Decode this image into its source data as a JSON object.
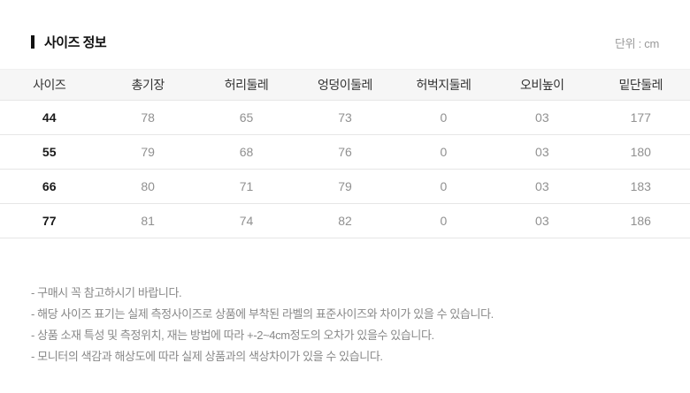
{
  "page": {
    "title": "사이즈 정보",
    "unit_label": "단위 : cm"
  },
  "table": {
    "headers": [
      "사이즈",
      "총기장",
      "허리둘레",
      "엉덩이둘레",
      "허벅지둘레",
      "오비높이",
      "밑단둘레"
    ],
    "rows": [
      [
        "44",
        "78",
        "65",
        "73",
        "0",
        "03",
        "177"
      ],
      [
        "55",
        "79",
        "68",
        "76",
        "0",
        "03",
        "180"
      ],
      [
        "66",
        "80",
        "71",
        "79",
        "0",
        "03",
        "183"
      ],
      [
        "77",
        "81",
        "74",
        "82",
        "0",
        "03",
        "186"
      ]
    ]
  },
  "footnotes": [
    "- 구매시 꼭 참고하시기 바랍니다.",
    "- 해당 사이즈 표기는 실제 측정사이즈로 상품에 부착된 라벨의 표준사이즈와 차이가 있을 수 있습니다.",
    "- 상품 소재 특성 및 측정위치, 재는 방법에 따라 +-2~4cm정도의 오차가 있을수 있습니다.",
    "- 모니터의 색감과 해상도에 따라 실제 상품과의 색상차이가 있을 수 있습니다."
  ],
  "colors": {
    "header_bg": "#f6f6f6",
    "row_border": "#e6e6e6",
    "title_text": "#111111",
    "muted_text": "#909090",
    "footnote_text": "#888888"
  }
}
